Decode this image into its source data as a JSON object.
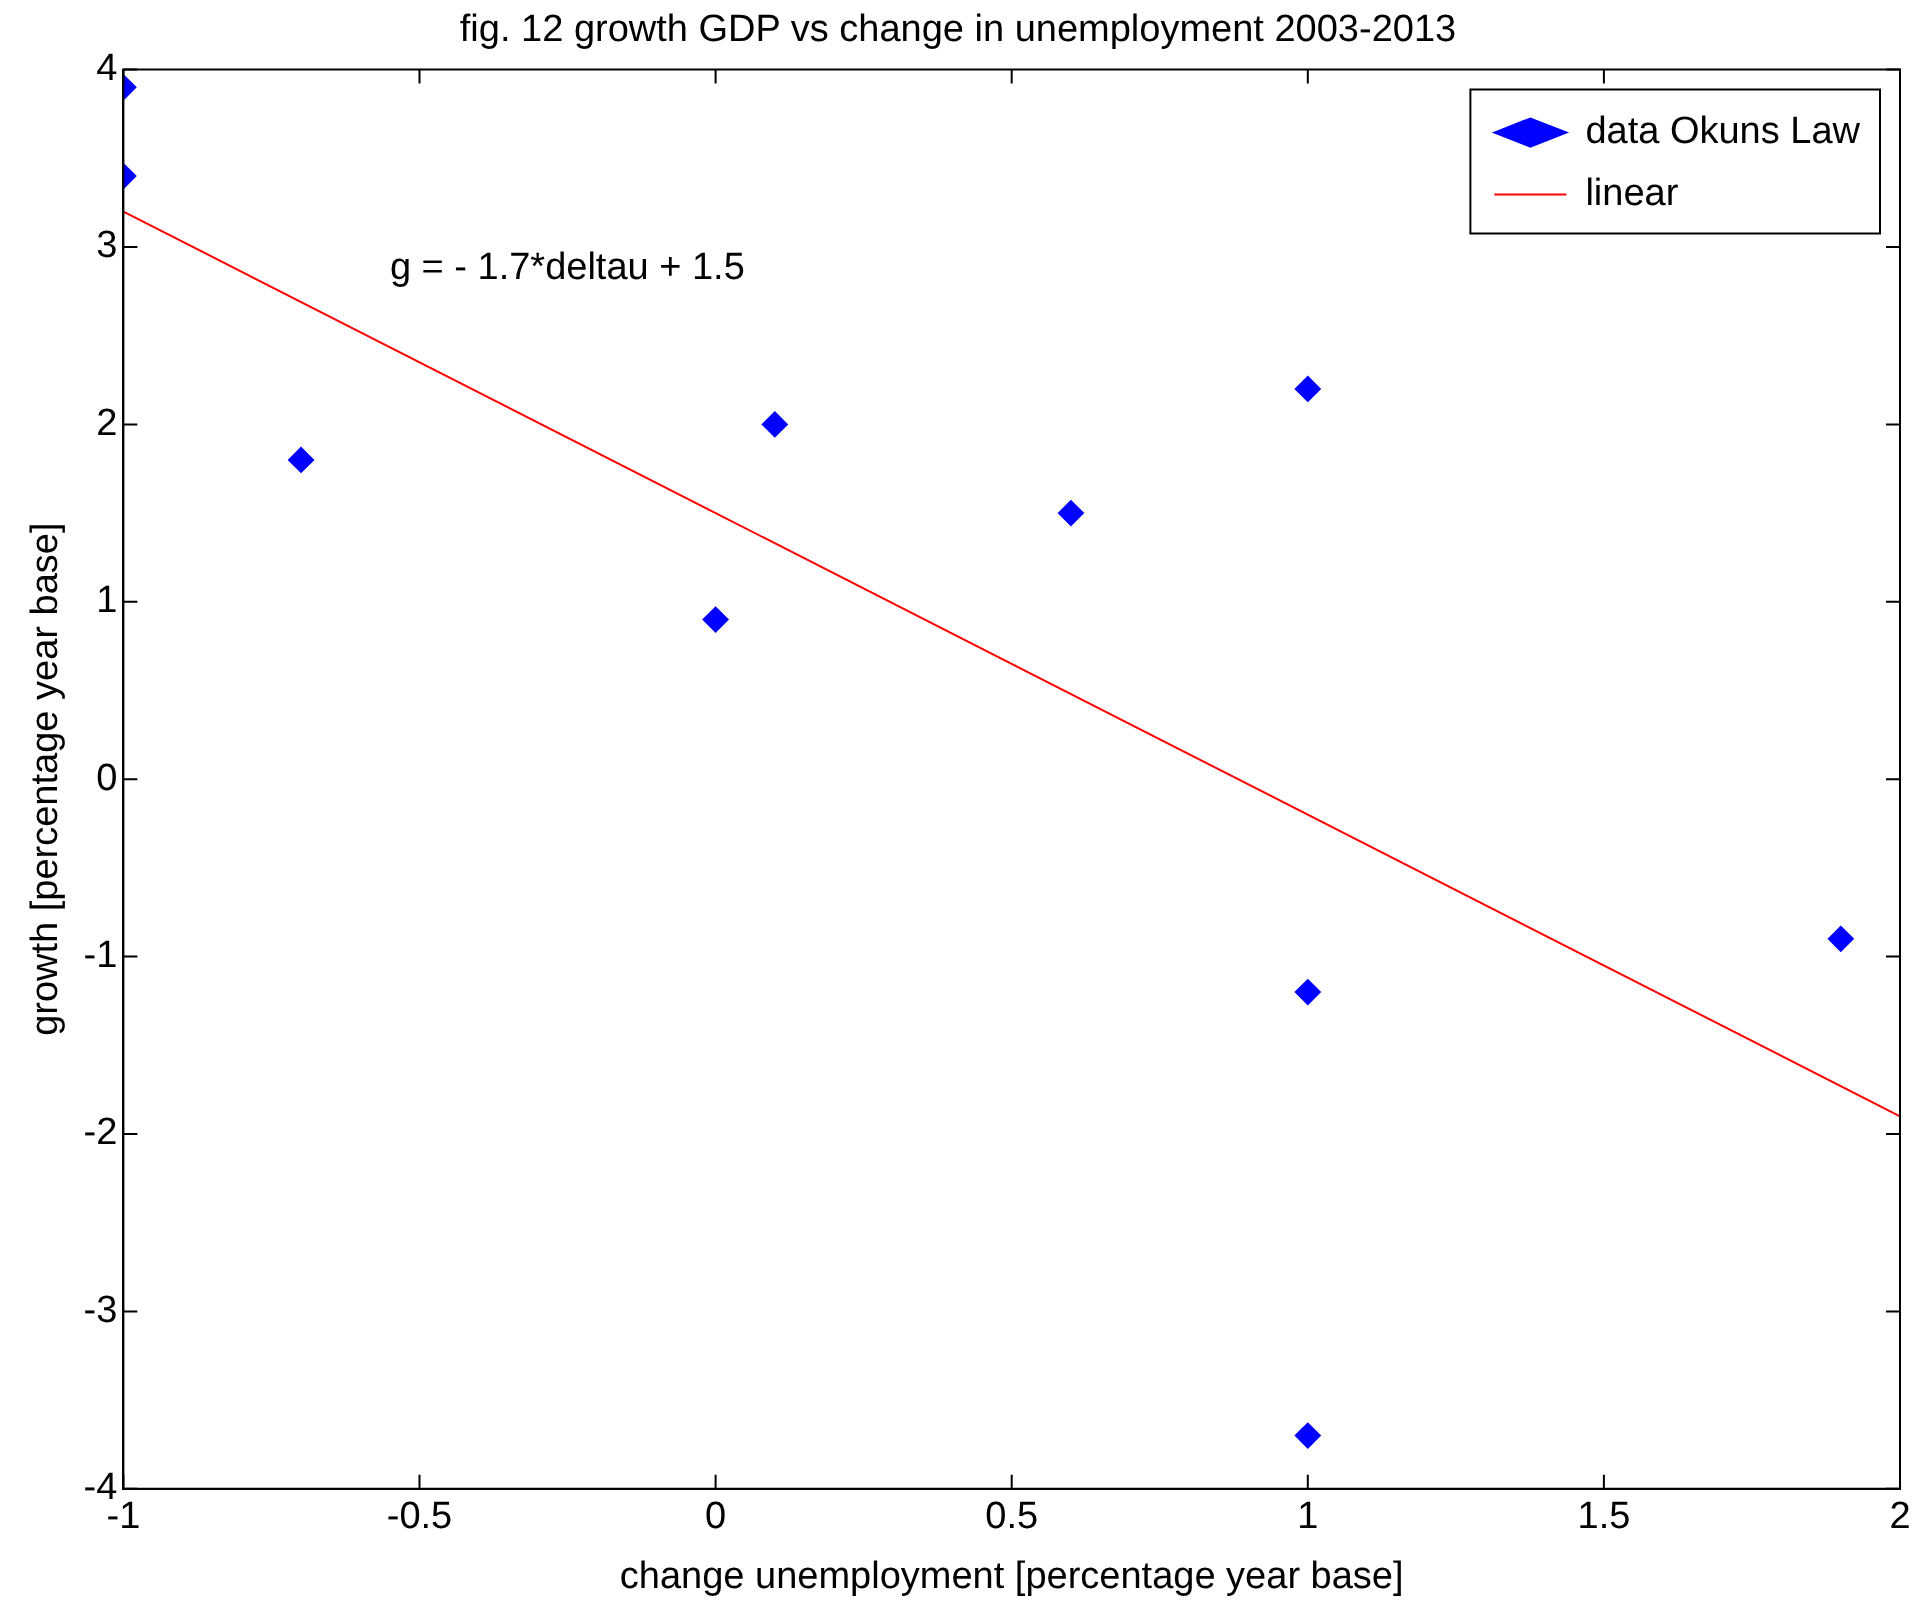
{
  "chart_data": {
    "type": "scatter",
    "title": "fig. 12 growth GDP vs change in unemployment 2003-2013",
    "xlabel": "change unemployment [percentage year base]",
    "ylabel": "growth [percentage year base]",
    "xlim": [
      -1,
      2
    ],
    "xticks": [
      -1,
      -0.5,
      0,
      0.5,
      1,
      1.5,
      2
    ],
    "ylim": [
      -4,
      4
    ],
    "yticks": [
      -4,
      -3,
      -2,
      -1,
      0,
      1,
      2,
      3,
      4
    ],
    "grid": false,
    "legend": "top right",
    "annotations": [
      "g = - 1.7*deltau + 1.5"
    ],
    "series": [
      {
        "name": "data Okuns Law",
        "marker": "diamond",
        "color": "#0000ff",
        "x": [
          -1,
          -1,
          -0.7,
          0,
          0.1,
          0.6,
          1,
          1,
          1,
          1.9
        ],
        "values": [
          3.9,
          3.4,
          1.8,
          0.9,
          2.0,
          1.5,
          2.2,
          -1.2,
          -3.7,
          -0.9
        ]
      },
      {
        "name": "linear",
        "type": "line",
        "color": "#ff0000",
        "line_style": "solid",
        "marker": "none",
        "x": [
          -1,
          2
        ],
        "values": [
          3.2,
          -1.9
        ]
      }
    ]
  }
}
